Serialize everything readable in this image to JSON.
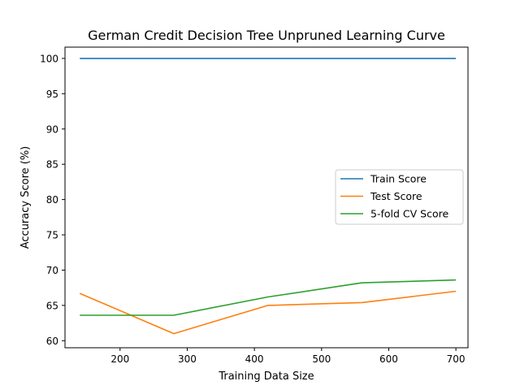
{
  "chart_data": {
    "type": "line",
    "title": "German Credit Decision Tree Unpruned Learning Curve",
    "xlabel": "Training Data Size",
    "ylabel": "Accuracy Score (%)",
    "xlim": [
      118,
      718
    ],
    "ylim": [
      59,
      101.6
    ],
    "xticks": [
      200,
      300,
      400,
      500,
      600,
      700
    ],
    "yticks": [
      60,
      65,
      70,
      75,
      80,
      85,
      90,
      95,
      100
    ],
    "grid": false,
    "legend_position": "center-right",
    "x": [
      140,
      280,
      420,
      560,
      700
    ],
    "series": [
      {
        "name": "Train Score",
        "color": "#1f77b4",
        "values": [
          100,
          100,
          100,
          100,
          100
        ]
      },
      {
        "name": "Test Score",
        "color": "#ff7f0e",
        "values": [
          66.7,
          61.0,
          65.0,
          65.4,
          67.0
        ]
      },
      {
        "name": "5-fold CV Score",
        "color": "#2ca02c",
        "values": [
          63.6,
          63.6,
          66.2,
          68.2,
          68.6
        ]
      }
    ]
  }
}
